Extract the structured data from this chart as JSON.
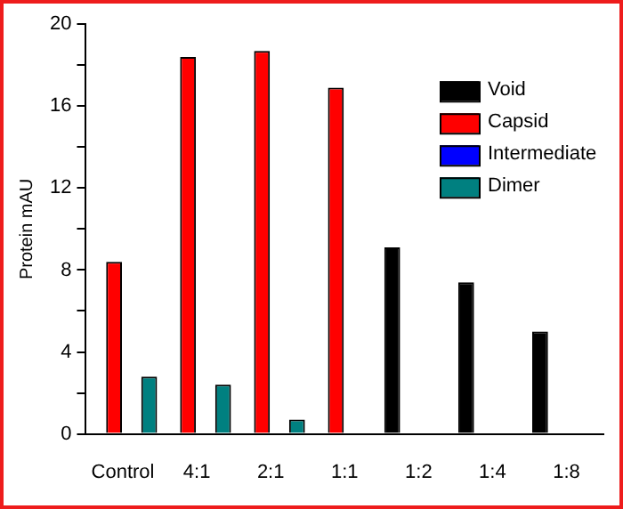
{
  "chart_data": {
    "type": "bar",
    "ylabel": "Protein mAU",
    "categories": [
      "Control",
      "4:1",
      "2:1",
      "1:1",
      "1:2",
      "1:4",
      "1:8"
    ],
    "series": [
      {
        "name": "Void",
        "color": "#000000",
        "values": [
          null,
          null,
          null,
          null,
          9.1,
          7.4,
          5.0
        ]
      },
      {
        "name": "Capsid",
        "color": "#ff0000",
        "values": [
          8.4,
          18.4,
          18.7,
          16.9,
          null,
          null,
          null
        ]
      },
      {
        "name": "Intermediate",
        "color": "#0000ff",
        "values": [
          null,
          null,
          null,
          null,
          null,
          null,
          null
        ]
      },
      {
        "name": "Dimer",
        "color": "#008080",
        "values": [
          2.8,
          2.4,
          0.7,
          null,
          null,
          null,
          null
        ]
      }
    ],
    "ylim": [
      0,
      20
    ],
    "yticks": [
      0,
      {
        "value": 2,
        "label": null
      },
      4,
      {
        "value": 6,
        "label": null
      },
      8,
      {
        "value": 10,
        "label": null
      },
      12,
      {
        "value": 14,
        "label": null
      },
      16,
      {
        "value": 18,
        "label": null
      },
      20
    ],
    "grid": false,
    "legend": "top right"
  }
}
